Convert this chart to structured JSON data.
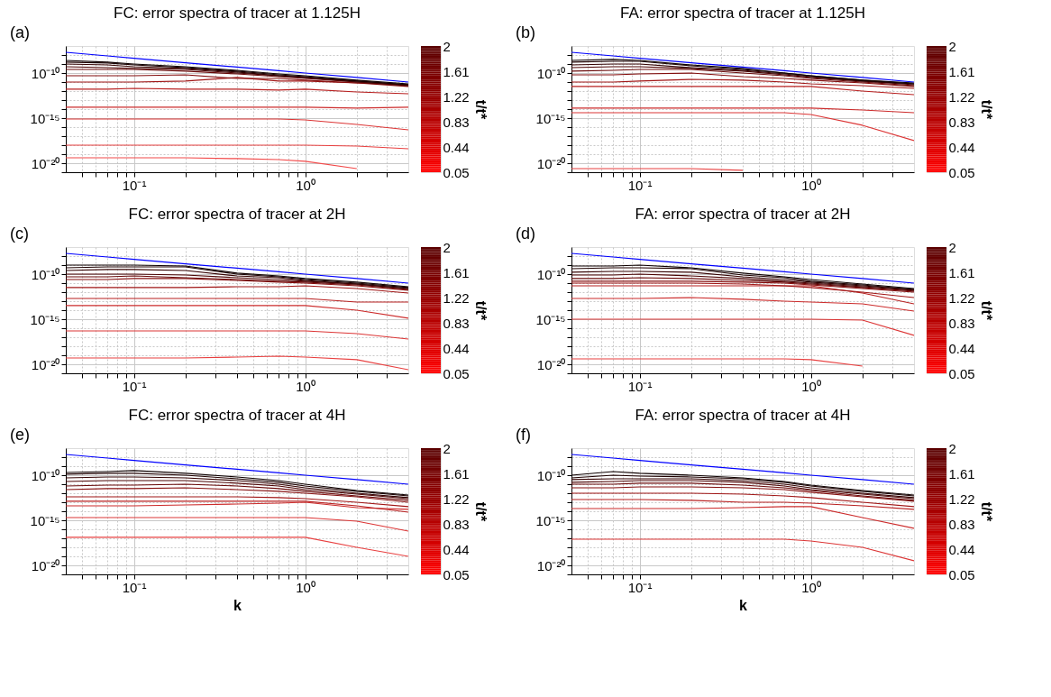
{
  "chart_data": [
    {
      "type": "line",
      "title": "FC: error spectra of tracer at 1.125H",
      "annotations": [
        "(a)"
      ],
      "clabel": "t/t*",
      "clim": [
        0.05,
        2
      ],
      "cticks": [
        0.05,
        0.44,
        0.83,
        1.22,
        1.61,
        2
      ],
      "log": "xy",
      "grid": true,
      "xlim": [
        0.04,
        4
      ],
      "ylim": [
        1e-21,
        1e-07
      ],
      "xticks": [
        {
          "value": 0.05,
          "label": null
        },
        {
          "value": 0.06,
          "label": null
        },
        {
          "value": 0.07,
          "label": null
        },
        {
          "value": 0.08,
          "label": null
        },
        {
          "value": 0.09,
          "label": null
        },
        {
          "value": 0.1,
          "label": "10⁻¹"
        },
        {
          "value": 0.2,
          "label": null
        },
        {
          "value": 0.3,
          "label": null
        },
        {
          "value": 0.4,
          "label": null
        },
        {
          "value": 0.5,
          "label": null
        },
        {
          "value": 0.6,
          "label": null
        },
        {
          "value": 0.7,
          "label": null
        },
        {
          "value": 0.8,
          "label": null
        },
        {
          "value": 0.9,
          "label": null
        },
        {
          "value": 1,
          "label": "10⁰"
        },
        {
          "value": 2,
          "label": null
        },
        {
          "value": 3,
          "label": null
        }
      ],
      "yticks": [
        {
          "value": 1e-21,
          "label": null
        },
        {
          "value": 1e-20,
          "label": "10⁻²⁰"
        },
        {
          "value": 1e-19,
          "label": null
        },
        {
          "value": 1e-18,
          "label": null
        },
        {
          "value": 1e-17,
          "label": null
        },
        {
          "value": 1e-16,
          "label": null
        },
        {
          "value": 1e-15,
          "label": "10⁻¹⁵"
        },
        {
          "value": 1e-14,
          "label": null
        },
        {
          "value": 1e-13,
          "label": null
        },
        {
          "value": 1e-12,
          "label": null
        },
        {
          "value": 1e-11,
          "label": null
        },
        {
          "value": 1e-10,
          "label": "10⁻¹⁰"
        },
        {
          "value": 1e-09,
          "label": null
        },
        {
          "value": 1e-08,
          "label": null
        }
      ],
      "x": [
        0.04,
        0.07,
        0.1,
        0.2,
        0.4,
        0.7,
        1,
        2,
        4
      ],
      "series": [
        {
          "color": "#f24a4a",
          "values": [
            4e-20,
            4e-20,
            4e-20,
            4e-20,
            3.2e-20,
            2.5e-20,
            1.6e-20,
            2.5e-21,
            null
          ]
        },
        {
          "color": "#e84040",
          "values": [
            1e-18,
            1e-18,
            1e-18,
            1e-18,
            1e-18,
            1e-18,
            1e-18,
            7.9e-19,
            4e-19
          ]
        },
        {
          "color": "#dc3636",
          "values": [
            7.9e-16,
            7.9e-16,
            7.9e-16,
            7.9e-16,
            7.9e-16,
            7.9e-16,
            6.3e-16,
            2e-16,
            5e-17
          ]
        },
        {
          "color": "#cc2c2c",
          "values": [
            1.6e-14,
            1.6e-14,
            1.6e-14,
            1.6e-14,
            1.6e-14,
            1.6e-14,
            1.6e-14,
            1.3e-14,
            1.6e-14
          ]
        },
        {
          "color": "#b82020",
          "values": [
            1.6e-12,
            1.6e-12,
            2e-12,
            1.6e-12,
            1.6e-12,
            1.3e-12,
            1.6e-12,
            7.9e-13,
            5e-13
          ]
        },
        {
          "color": "#a01616",
          "values": [
            1e-11,
            1e-11,
            1e-11,
            1.3e-11,
            3.2e-11,
            1.3e-11,
            1.3e-11,
            7.9e-12,
            5e-12
          ]
        },
        {
          "color": "#840e0e",
          "values": [
            5e-11,
            5e-11,
            5e-11,
            6.3e-11,
            2.5e-11,
            2.5e-11,
            1.6e-11,
            7.9e-12,
            3.2e-12
          ]
        },
        {
          "color": "#680808",
          "values": [
            2.5e-10,
            2.5e-10,
            2.5e-10,
            1.6e-10,
            7.9e-11,
            4e-11,
            2.5e-11,
            1e-11,
            4e-12
          ]
        },
        {
          "color": "#4c0404",
          "values": [
            5e-10,
            4e-10,
            3.2e-10,
            2.5e-10,
            1e-10,
            5e-11,
            3.2e-11,
            1e-11,
            4e-12
          ]
        },
        {
          "color": "#340202",
          "values": [
            1e-09,
            7.9e-10,
            5e-10,
            3.2e-10,
            1.3e-10,
            5e-11,
            3.2e-11,
            1.3e-11,
            5e-12
          ]
        },
        {
          "color": "#1e0000",
          "values": [
            1.6e-09,
            1.3e-09,
            7.9e-10,
            4e-10,
            1.6e-10,
            6.3e-11,
            4e-11,
            1.3e-11,
            5e-12
          ]
        },
        {
          "color": "#0e0000",
          "values": [
            2.5e-09,
            1.6e-09,
            1e-09,
            5e-10,
            2e-10,
            7.9e-11,
            5e-11,
            1.6e-11,
            6.3e-12
          ]
        },
        {
          "color": "#0000ff",
          "values": [
            2e-08,
            7.9e-09,
            4.4e-09,
            1.4e-09,
            4.5e-10,
            1.8e-10,
            1e-10,
            3.2e-11,
            1e-11
          ]
        }
      ]
    },
    {
      "type": "line",
      "title": "FA: error spectra of tracer at 1.125H",
      "annotations": [
        "(b)"
      ],
      "clabel": "t/t*",
      "clim": [
        0.05,
        2
      ],
      "cticks": [
        0.05,
        0.44,
        0.83,
        1.22,
        1.61,
        2
      ],
      "log": "xy",
      "grid": true,
      "xlim": [
        0.04,
        4
      ],
      "ylim": [
        1e-21,
        1e-07
      ],
      "xticks": [
        {
          "value": 0.05,
          "label": null
        },
        {
          "value": 0.06,
          "label": null
        },
        {
          "value": 0.07,
          "label": null
        },
        {
          "value": 0.08,
          "label": null
        },
        {
          "value": 0.09,
          "label": null
        },
        {
          "value": 0.1,
          "label": "10⁻¹"
        },
        {
          "value": 0.2,
          "label": null
        },
        {
          "value": 0.3,
          "label": null
        },
        {
          "value": 0.4,
          "label": null
        },
        {
          "value": 0.5,
          "label": null
        },
        {
          "value": 0.6,
          "label": null
        },
        {
          "value": 0.7,
          "label": null
        },
        {
          "value": 0.8,
          "label": null
        },
        {
          "value": 0.9,
          "label": null
        },
        {
          "value": 1,
          "label": "10⁰"
        },
        {
          "value": 2,
          "label": null
        },
        {
          "value": 3,
          "label": null
        }
      ],
      "yticks": [
        {
          "value": 1e-21,
          "label": null
        },
        {
          "value": 1e-20,
          "label": "10⁻²⁰"
        },
        {
          "value": 1e-19,
          "label": null
        },
        {
          "value": 1e-18,
          "label": null
        },
        {
          "value": 1e-17,
          "label": null
        },
        {
          "value": 1e-16,
          "label": null
        },
        {
          "value": 1e-15,
          "label": "10⁻¹⁵"
        },
        {
          "value": 1e-14,
          "label": null
        },
        {
          "value": 1e-13,
          "label": null
        },
        {
          "value": 1e-12,
          "label": null
        },
        {
          "value": 1e-11,
          "label": null
        },
        {
          "value": 1e-10,
          "label": "10⁻¹⁰"
        },
        {
          "value": 1e-09,
          "label": null
        },
        {
          "value": 1e-08,
          "label": null
        }
      ],
      "x": [
        0.04,
        0.07,
        0.1,
        0.2,
        0.4,
        0.7,
        1,
        2,
        4
      ],
      "series": [
        {
          "color": "#e84040",
          "values": [
            2.5e-21,
            2.5e-21,
            2.5e-21,
            2.5e-21,
            1.6e-21,
            null,
            null,
            null,
            null
          ]
        },
        {
          "color": "#dc3636",
          "values": [
            4e-15,
            4e-15,
            4e-15,
            4e-15,
            4e-15,
            4e-15,
            2.5e-15,
            1.6e-16,
            3.2e-18
          ]
        },
        {
          "color": "#cc2c2c",
          "values": [
            1.3e-14,
            1.3e-14,
            1.3e-14,
            1.3e-14,
            1.3e-14,
            1.3e-14,
            1.3e-14,
            7.9e-15,
            4e-15
          ]
        },
        {
          "color": "#b82020",
          "values": [
            3.2e-12,
            3.2e-12,
            3.2e-12,
            3.2e-12,
            3.2e-12,
            3.2e-12,
            3.2e-12,
            1e-12,
            4e-13
          ]
        },
        {
          "color": "#a01616",
          "values": [
            1e-11,
            1e-11,
            1.3e-11,
            2e-11,
            1.6e-11,
            1e-11,
            6.3e-12,
            4e-12,
            2e-12
          ]
        },
        {
          "color": "#840e0e",
          "values": [
            6.3e-11,
            6.3e-11,
            7.9e-11,
            1e-10,
            4e-11,
            2.5e-11,
            1.6e-11,
            7.9e-12,
            3.2e-12
          ]
        },
        {
          "color": "#680808",
          "values": [
            1.6e-10,
            2e-10,
            2.5e-10,
            2.5e-10,
            1e-10,
            5e-11,
            2.5e-11,
            1e-11,
            4e-12
          ]
        },
        {
          "color": "#4c0404",
          "values": [
            4e-10,
            5e-10,
            5e-10,
            3.2e-10,
            1.6e-10,
            6.3e-11,
            3.2e-11,
            1.3e-11,
            5e-12
          ]
        },
        {
          "color": "#340202",
          "values": [
            7.9e-10,
            1e-09,
            1e-09,
            4e-10,
            2e-10,
            7.9e-11,
            4e-11,
            1.3e-11,
            6.3e-12
          ]
        },
        {
          "color": "#1e0000",
          "values": [
            1.6e-09,
            2e-09,
            2e-09,
            6.3e-10,
            2.5e-10,
            1e-10,
            5e-11,
            1.6e-11,
            6.3e-12
          ]
        },
        {
          "color": "#0e0000",
          "values": [
            2.5e-09,
            3.2e-09,
            2.5e-09,
            7.9e-10,
            3.2e-10,
            1e-10,
            5e-11,
            1.6e-11,
            7.9e-12
          ]
        },
        {
          "color": "#0000ff",
          "values": [
            2e-08,
            7.9e-09,
            4.4e-09,
            1.4e-09,
            4.5e-10,
            1.8e-10,
            1e-10,
            3.2e-11,
            1e-11
          ]
        }
      ]
    },
    {
      "type": "line",
      "title": "FC: error spectra of tracer at 2H",
      "annotations": [
        "(c)"
      ],
      "clabel": "t/t*",
      "clim": [
        0.05,
        2
      ],
      "cticks": [
        0.05,
        0.44,
        0.83,
        1.22,
        1.61,
        2
      ],
      "log": "xy",
      "grid": true,
      "xlim": [
        0.04,
        4
      ],
      "ylim": [
        1e-21,
        1e-07
      ],
      "xticks": [
        {
          "value": 0.05,
          "label": null
        },
        {
          "value": 0.06,
          "label": null
        },
        {
          "value": 0.07,
          "label": null
        },
        {
          "value": 0.08,
          "label": null
        },
        {
          "value": 0.09,
          "label": null
        },
        {
          "value": 0.1,
          "label": "10⁻¹"
        },
        {
          "value": 0.2,
          "label": null
        },
        {
          "value": 0.3,
          "label": null
        },
        {
          "value": 0.4,
          "label": null
        },
        {
          "value": 0.5,
          "label": null
        },
        {
          "value": 0.6,
          "label": null
        },
        {
          "value": 0.7,
          "label": null
        },
        {
          "value": 0.8,
          "label": null
        },
        {
          "value": 0.9,
          "label": null
        },
        {
          "value": 1,
          "label": "10⁰"
        },
        {
          "value": 2,
          "label": null
        },
        {
          "value": 3,
          "label": null
        }
      ],
      "yticks": [
        {
          "value": 1e-21,
          "label": null
        },
        {
          "value": 1e-20,
          "label": "10⁻²⁰"
        },
        {
          "value": 1e-19,
          "label": null
        },
        {
          "value": 1e-18,
          "label": null
        },
        {
          "value": 1e-17,
          "label": null
        },
        {
          "value": 1e-16,
          "label": null
        },
        {
          "value": 1e-15,
          "label": "10⁻¹⁵"
        },
        {
          "value": 1e-14,
          "label": null
        },
        {
          "value": 1e-13,
          "label": null
        },
        {
          "value": 1e-12,
          "label": null
        },
        {
          "value": 1e-11,
          "label": null
        },
        {
          "value": 1e-10,
          "label": "10⁻¹⁰"
        },
        {
          "value": 1e-09,
          "label": null
        },
        {
          "value": 1e-08,
          "label": null
        }
      ],
      "x": [
        0.04,
        0.07,
        0.1,
        0.2,
        0.4,
        0.7,
        1,
        2,
        4
      ],
      "series": [
        {
          "color": "#e84040",
          "values": [
            5e-20,
            5e-20,
            5e-20,
            5e-20,
            6.3e-20,
            7.9e-20,
            6.3e-20,
            3.2e-20,
            2.5e-21
          ]
        },
        {
          "color": "#dc3636",
          "values": [
            5e-17,
            5e-17,
            5e-17,
            5e-17,
            5e-17,
            5e-17,
            5e-17,
            2.5e-17,
            6.3e-18
          ]
        },
        {
          "color": "#cc2c2c",
          "values": [
            3.2e-14,
            3.2e-14,
            3.2e-14,
            3.2e-14,
            3.2e-14,
            3.2e-14,
            3.2e-14,
            1e-14,
            1.3e-15
          ]
        },
        {
          "color": "#b82020",
          "values": [
            2e-13,
            2e-13,
            2e-13,
            2e-13,
            2e-13,
            2e-13,
            2e-13,
            7.9e-14,
            7.9e-14
          ]
        },
        {
          "color": "#a01616",
          "values": [
            3.2e-12,
            3.2e-12,
            3.2e-12,
            3.2e-12,
            4e-12,
            4e-12,
            5e-12,
            2.5e-12,
            7.9e-13
          ]
        },
        {
          "color": "#840e0e",
          "values": [
            2.5e-11,
            2.5e-11,
            3.2e-11,
            3.2e-11,
            2e-11,
            1.3e-11,
            1e-11,
            5e-12,
            1.6e-12
          ]
        },
        {
          "color": "#680808",
          "values": [
            5e-11,
            5e-11,
            6.3e-11,
            4e-11,
            2.5e-11,
            1.6e-11,
            1.3e-11,
            6.3e-12,
            2e-12
          ]
        },
        {
          "color": "#4c0404",
          "values": [
            1e-10,
            1e-10,
            1e-10,
            7.9e-11,
            4e-11,
            2.5e-11,
            1.6e-11,
            7.9e-12,
            2.5e-12
          ]
        },
        {
          "color": "#340202",
          "values": [
            2.5e-10,
            3.2e-10,
            3.2e-10,
            2.5e-10,
            6.3e-11,
            4e-11,
            2e-11,
            7.9e-12,
            2.5e-12
          ]
        },
        {
          "color": "#1e0000",
          "values": [
            5e-10,
            6.3e-10,
            6.3e-10,
            6.3e-10,
            1e-10,
            5e-11,
            2.5e-11,
            1e-11,
            3.2e-12
          ]
        },
        {
          "color": "#0e0000",
          "values": [
            1e-09,
            1e-09,
            1e-09,
            7.9e-10,
            1.3e-10,
            6.3e-11,
            3.2e-11,
            1.3e-11,
            4e-12
          ]
        },
        {
          "color": "#0000ff",
          "values": [
            2e-08,
            7.9e-09,
            4.4e-09,
            1.4e-09,
            4.5e-10,
            1.8e-10,
            1e-10,
            3.2e-11,
            1e-11
          ]
        }
      ]
    },
    {
      "type": "line",
      "title": "FA: error spectra of tracer at 2H",
      "annotations": [
        "(d)"
      ],
      "clabel": "t/t*",
      "clim": [
        0.05,
        2
      ],
      "cticks": [
        0.05,
        0.44,
        0.83,
        1.22,
        1.61,
        2
      ],
      "log": "xy",
      "grid": true,
      "xlim": [
        0.04,
        4
      ],
      "ylim": [
        1e-21,
        1e-07
      ],
      "xticks": [
        {
          "value": 0.05,
          "label": null
        },
        {
          "value": 0.06,
          "label": null
        },
        {
          "value": 0.07,
          "label": null
        },
        {
          "value": 0.08,
          "label": null
        },
        {
          "value": 0.09,
          "label": null
        },
        {
          "value": 0.1,
          "label": "10⁻¹"
        },
        {
          "value": 0.2,
          "label": null
        },
        {
          "value": 0.3,
          "label": null
        },
        {
          "value": 0.4,
          "label": null
        },
        {
          "value": 0.5,
          "label": null
        },
        {
          "value": 0.6,
          "label": null
        },
        {
          "value": 0.7,
          "label": null
        },
        {
          "value": 0.8,
          "label": null
        },
        {
          "value": 0.9,
          "label": null
        },
        {
          "value": 1,
          "label": "10⁰"
        },
        {
          "value": 2,
          "label": null
        },
        {
          "value": 3,
          "label": null
        }
      ],
      "yticks": [
        {
          "value": 1e-21,
          "label": null
        },
        {
          "value": 1e-20,
          "label": "10⁻²⁰"
        },
        {
          "value": 1e-19,
          "label": null
        },
        {
          "value": 1e-18,
          "label": null
        },
        {
          "value": 1e-17,
          "label": null
        },
        {
          "value": 1e-16,
          "label": null
        },
        {
          "value": 1e-15,
          "label": "10⁻¹⁵"
        },
        {
          "value": 1e-14,
          "label": null
        },
        {
          "value": 1e-13,
          "label": null
        },
        {
          "value": 1e-12,
          "label": null
        },
        {
          "value": 1e-11,
          "label": null
        },
        {
          "value": 1e-10,
          "label": "10⁻¹⁰"
        },
        {
          "value": 1e-09,
          "label": null
        },
        {
          "value": 1e-08,
          "label": null
        }
      ],
      "x": [
        0.04,
        0.07,
        0.1,
        0.2,
        0.4,
        0.7,
        1,
        2,
        4
      ],
      "series": [
        {
          "color": "#e84040",
          "values": [
            4e-20,
            4e-20,
            4e-20,
            4e-20,
            4e-20,
            4e-20,
            3.2e-20,
            6.3e-21,
            null
          ]
        },
        {
          "color": "#dc3636",
          "values": [
            1e-15,
            1e-15,
            1e-15,
            1e-15,
            1e-15,
            1e-15,
            1e-15,
            7.9e-16,
            1.6e-17
          ]
        },
        {
          "color": "#cc2c2c",
          "values": [
            2e-13,
            2e-13,
            2e-13,
            2.5e-13,
            1.6e-13,
            1e-13,
            7.9e-14,
            5e-14,
            7.9e-15
          ]
        },
        {
          "color": "#b82020",
          "values": [
            5e-12,
            5e-12,
            5e-12,
            5e-12,
            5e-12,
            5e-12,
            5e-12,
            7.9e-13,
            5e-14
          ]
        },
        {
          "color": "#a01616",
          "values": [
            1e-11,
            1e-11,
            1e-11,
            1e-11,
            7.9e-12,
            5e-12,
            3.2e-12,
            1e-12,
            2.5e-13
          ]
        },
        {
          "color": "#840e0e",
          "values": [
            1.6e-11,
            1.6e-11,
            1.6e-11,
            1.6e-11,
            1.3e-11,
            1e-11,
            6.3e-12,
            2.5e-12,
            1e-12
          ]
        },
        {
          "color": "#680808",
          "values": [
            3.2e-11,
            3.2e-11,
            4e-11,
            3.2e-11,
            2e-11,
            1.3e-11,
            7.9e-12,
            3.2e-12,
            1.3e-12
          ]
        },
        {
          "color": "#4c0404",
          "values": [
            7.9e-11,
            7.9e-11,
            1e-10,
            6.3e-11,
            3.2e-11,
            1.6e-11,
            1e-11,
            4e-12,
            1.6e-12
          ]
        },
        {
          "color": "#340202",
          "values": [
            1.6e-10,
            2e-10,
            2e-10,
            1.6e-10,
            5e-11,
            2.5e-11,
            1.3e-11,
            5e-12,
            2e-12
          ]
        },
        {
          "color": "#1e0000",
          "values": [
            4e-10,
            5e-10,
            5e-10,
            4e-10,
            7.9e-11,
            4e-11,
            1.6e-11,
            6.3e-12,
            2e-12
          ]
        },
        {
          "color": "#0e0000",
          "values": [
            7.9e-10,
            7.9e-10,
            1e-09,
            5e-10,
            1.3e-10,
            5e-11,
            2.5e-11,
            7.9e-12,
            2.5e-12
          ]
        },
        {
          "color": "#0000ff",
          "values": [
            2e-08,
            7.9e-09,
            4.4e-09,
            1.4e-09,
            4.5e-10,
            1.8e-10,
            1e-10,
            3.2e-11,
            1e-11
          ]
        }
      ]
    },
    {
      "type": "line",
      "title": "FC: error spectra of tracer at 4H",
      "xlabel": "k",
      "annotations": [
        "(e)"
      ],
      "clabel": "t/t*",
      "clim": [
        0.05,
        2
      ],
      "cticks": [
        0.05,
        0.44,
        0.83,
        1.22,
        1.61,
        2
      ],
      "log": "xy",
      "grid": true,
      "xlim": [
        0.04,
        4
      ],
      "ylim": [
        1e-21,
        1e-07
      ],
      "xticks": [
        {
          "value": 0.05,
          "label": null
        },
        {
          "value": 0.06,
          "label": null
        },
        {
          "value": 0.07,
          "label": null
        },
        {
          "value": 0.08,
          "label": null
        },
        {
          "value": 0.09,
          "label": null
        },
        {
          "value": 0.1,
          "label": "10⁻¹"
        },
        {
          "value": 0.2,
          "label": null
        },
        {
          "value": 0.3,
          "label": null
        },
        {
          "value": 0.4,
          "label": null
        },
        {
          "value": 0.5,
          "label": null
        },
        {
          "value": 0.6,
          "label": null
        },
        {
          "value": 0.7,
          "label": null
        },
        {
          "value": 0.8,
          "label": null
        },
        {
          "value": 0.9,
          "label": null
        },
        {
          "value": 1,
          "label": "10⁰"
        },
        {
          "value": 2,
          "label": null
        },
        {
          "value": 3,
          "label": null
        }
      ],
      "yticks": [
        {
          "value": 1e-21,
          "label": null
        },
        {
          "value": 1e-20,
          "label": "10⁻²⁰"
        },
        {
          "value": 1e-19,
          "label": null
        },
        {
          "value": 1e-18,
          "label": null
        },
        {
          "value": 1e-17,
          "label": null
        },
        {
          "value": 1e-16,
          "label": null
        },
        {
          "value": 1e-15,
          "label": "10⁻¹⁵"
        },
        {
          "value": 1e-14,
          "label": null
        },
        {
          "value": 1e-13,
          "label": null
        },
        {
          "value": 1e-12,
          "label": null
        },
        {
          "value": 1e-11,
          "label": null
        },
        {
          "value": 1e-10,
          "label": "10⁻¹⁰"
        },
        {
          "value": 1e-09,
          "label": null
        },
        {
          "value": 1e-08,
          "label": null
        }
      ],
      "x": [
        0.04,
        0.07,
        0.1,
        0.2,
        0.4,
        0.7,
        1,
        2,
        4
      ],
      "series": [
        {
          "color": "#e84040",
          "values": [
            1.3e-17,
            1.3e-17,
            1.3e-17,
            1.3e-17,
            1.3e-17,
            1.3e-17,
            1.3e-17,
            1e-18,
            1e-19
          ]
        },
        {
          "color": "#dc3636",
          "values": [
            2e-15,
            2e-15,
            2e-15,
            2e-15,
            2e-15,
            2e-15,
            2e-15,
            7.9e-16,
            6.3e-17
          ]
        },
        {
          "color": "#cc2c2c",
          "values": [
            4e-14,
            4e-14,
            4e-14,
            5e-14,
            6.3e-14,
            7.9e-14,
            1e-13,
            2.5e-14,
            1.6e-14
          ]
        },
        {
          "color": "#b82020",
          "values": [
            1.3e-13,
            1.3e-13,
            1.3e-13,
            1.3e-13,
            1.3e-13,
            1.3e-13,
            1.3e-13,
            4e-14,
            7.9e-15
          ]
        },
        {
          "color": "#a01616",
          "values": [
            4e-13,
            4e-13,
            4e-13,
            4e-13,
            4e-13,
            3.2e-13,
            2.5e-13,
            1e-13,
            3.2e-14
          ]
        },
        {
          "color": "#840e0e",
          "values": [
            2.5e-12,
            3.2e-12,
            3.2e-12,
            4e-12,
            2.5e-12,
            1.6e-12,
            1e-12,
            4e-13,
            1e-13
          ]
        },
        {
          "color": "#680808",
          "values": [
            6.3e-12,
            7.9e-12,
            7.9e-12,
            1e-11,
            6.3e-12,
            3.2e-12,
            1.6e-12,
            5e-13,
            1.6e-13
          ]
        },
        {
          "color": "#4c0404",
          "values": [
            2e-11,
            2.5e-11,
            2.5e-11,
            2.5e-11,
            1.3e-11,
            6.3e-12,
            2.5e-12,
            7.9e-13,
            2.5e-13
          ]
        },
        {
          "color": "#340202",
          "values": [
            5e-11,
            6.3e-11,
            6.3e-11,
            5e-11,
            2.5e-11,
            1e-11,
            4e-12,
            1e-12,
            3.2e-13
          ]
        },
        {
          "color": "#1e0000",
          "values": [
            1.3e-10,
            1.6e-10,
            1.6e-10,
            1e-10,
            4e-11,
            1.6e-11,
            6.3e-12,
            1.6e-12,
            5e-13
          ]
        },
        {
          "color": "#0e0000",
          "values": [
            2e-10,
            2.5e-10,
            3.2e-10,
            1.6e-10,
            6.3e-11,
            2.5e-11,
            1e-11,
            2e-12,
            6.3e-13
          ]
        },
        {
          "color": "#0000ff",
          "values": [
            2e-08,
            7.9e-09,
            4.4e-09,
            1.4e-09,
            4.5e-10,
            1.8e-10,
            1e-10,
            3.2e-11,
            1e-11
          ]
        }
      ]
    },
    {
      "type": "line",
      "title": "FA: error spectra of tracer at 4H",
      "xlabel": "k",
      "annotations": [
        "(f)"
      ],
      "clabel": "t/t*",
      "clim": [
        0.05,
        2
      ],
      "cticks": [
        0.05,
        0.44,
        0.83,
        1.22,
        1.61,
        2
      ],
      "log": "xy",
      "grid": true,
      "xlim": [
        0.04,
        4
      ],
      "ylim": [
        1e-21,
        1e-07
      ],
      "xticks": [
        {
          "value": 0.05,
          "label": null
        },
        {
          "value": 0.06,
          "label": null
        },
        {
          "value": 0.07,
          "label": null
        },
        {
          "value": 0.08,
          "label": null
        },
        {
          "value": 0.09,
          "label": null
        },
        {
          "value": 0.1,
          "label": "10⁻¹"
        },
        {
          "value": 0.2,
          "label": null
        },
        {
          "value": 0.3,
          "label": null
        },
        {
          "value": 0.4,
          "label": null
        },
        {
          "value": 0.5,
          "label": null
        },
        {
          "value": 0.6,
          "label": null
        },
        {
          "value": 0.7,
          "label": null
        },
        {
          "value": 0.8,
          "label": null
        },
        {
          "value": 0.9,
          "label": null
        },
        {
          "value": 1,
          "label": "10⁰"
        },
        {
          "value": 2,
          "label": null
        },
        {
          "value": 3,
          "label": null
        }
      ],
      "yticks": [
        {
          "value": 1e-21,
          "label": null
        },
        {
          "value": 1e-20,
          "label": "10⁻²⁰"
        },
        {
          "value": 1e-19,
          "label": null
        },
        {
          "value": 1e-18,
          "label": null
        },
        {
          "value": 1e-17,
          "label": null
        },
        {
          "value": 1e-16,
          "label": null
        },
        {
          "value": 1e-15,
          "label": "10⁻¹⁵"
        },
        {
          "value": 1e-14,
          "label": null
        },
        {
          "value": 1e-13,
          "label": null
        },
        {
          "value": 1e-12,
          "label": null
        },
        {
          "value": 1e-11,
          "label": null
        },
        {
          "value": 1e-10,
          "label": "10⁻¹⁰"
        },
        {
          "value": 1e-09,
          "label": null
        },
        {
          "value": 1e-08,
          "label": null
        }
      ],
      "x": [
        0.04,
        0.07,
        0.1,
        0.2,
        0.4,
        0.7,
        1,
        2,
        4
      ],
      "series": [
        {
          "color": "#dc3636",
          "values": [
            7.9e-18,
            7.9e-18,
            7.9e-18,
            7.9e-18,
            7.9e-18,
            7.9e-18,
            5e-18,
            1e-18,
            3.2e-20
          ]
        },
        {
          "color": "#cc2c2c",
          "values": [
            2e-14,
            2e-14,
            2e-14,
            2e-14,
            2.5e-14,
            3.2e-14,
            3.2e-14,
            2e-15,
            1.3e-16
          ]
        },
        {
          "color": "#b82020",
          "values": [
            2e-13,
            2e-13,
            2e-13,
            1.6e-13,
            1e-13,
            1e-13,
            7.9e-14,
            4e-14,
            1.6e-14
          ]
        },
        {
          "color": "#a01616",
          "values": [
            1e-12,
            1e-12,
            1e-12,
            1e-12,
            7.9e-13,
            5e-13,
            3.2e-13,
            1e-13,
            3.2e-14
          ]
        },
        {
          "color": "#840e0e",
          "values": [
            4e-12,
            4e-12,
            5e-12,
            5e-12,
            4e-12,
            2.5e-12,
            1.3e-12,
            4e-13,
            1.3e-13
          ]
        },
        {
          "color": "#680808",
          "values": [
            1e-11,
            1e-11,
            1.3e-11,
            1.3e-11,
            7.9e-12,
            4e-12,
            2e-12,
            5e-13,
            1.6e-13
          ]
        },
        {
          "color": "#4c0404",
          "values": [
            1.6e-11,
            2e-11,
            2.5e-11,
            2.5e-11,
            1.6e-11,
            6.3e-12,
            2.5e-12,
            7.9e-13,
            2.5e-13
          ]
        },
        {
          "color": "#340202",
          "values": [
            3.2e-11,
            4e-11,
            4e-11,
            4e-11,
            2.5e-11,
            1e-11,
            4e-12,
            1e-12,
            3.2e-13
          ]
        },
        {
          "color": "#1e0000",
          "values": [
            5e-11,
            1e-10,
            7.9e-11,
            6.3e-11,
            4e-11,
            1.6e-11,
            6.3e-12,
            1.6e-12,
            5e-13
          ]
        },
        {
          "color": "#0e0000",
          "values": [
            1e-10,
            2.5e-10,
            1.6e-10,
            1e-10,
            5e-11,
            2e-11,
            7.9e-12,
            2e-12,
            6.3e-13
          ]
        },
        {
          "color": "#0000ff",
          "values": [
            2e-08,
            7.9e-09,
            4.4e-09,
            1.4e-09,
            4.5e-10,
            1.8e-10,
            1e-10,
            3.2e-11,
            1e-11
          ]
        }
      ]
    }
  ]
}
